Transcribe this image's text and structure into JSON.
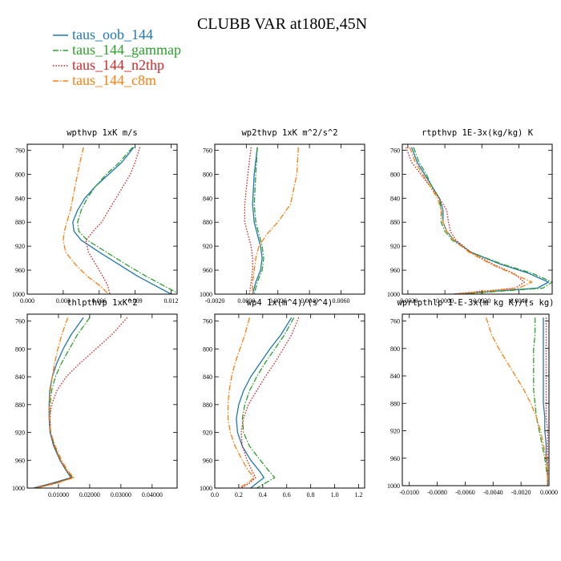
{
  "figure": {
    "title": "CLUBB VAR at180E,45N"
  },
  "legend": [
    {
      "label": "taus_oob_144",
      "color": "#1f77b4",
      "dash": "solid"
    },
    {
      "label": "taus_144_gammap",
      "color": "#2ca02c",
      "dash": "dashdot"
    },
    {
      "label": "taus_144_n2thp",
      "color": "#d62728",
      "dash": "dot"
    },
    {
      "label": "taus_144_c8m",
      "color": "#ff7f0e",
      "dash": "dashdot"
    }
  ],
  "chart_data": [
    {
      "type": "line",
      "title": "wpthvp  1xK m/s",
      "xlim": [
        0.0,
        0.0125
      ],
      "ylim": [
        750,
        1000
      ],
      "xticks": [
        "0.000",
        "0.003",
        "0.006",
        "0.009",
        "0.012"
      ],
      "xtick_values": [
        0.0,
        0.003,
        0.006,
        0.009,
        0.012
      ],
      "yticks": [
        "760",
        "800",
        "840",
        "880",
        "920",
        "960",
        "1000"
      ],
      "ytick_values": [
        760,
        800,
        840,
        880,
        920,
        960,
        1000
      ],
      "y": [
        755,
        780,
        800,
        820,
        840,
        860,
        880,
        895,
        910,
        930,
        950,
        970,
        985,
        1000
      ],
      "series": [
        {
          "name": "taus_oob_144",
          "x": [
            0.0089,
            0.0079,
            0.0068,
            0.0057,
            0.0048,
            0.0042,
            0.0038,
            0.0039,
            0.0045,
            0.006,
            0.0076,
            0.0092,
            0.0106,
            0.012
          ]
        },
        {
          "name": "taus_144_gammap",
          "x": [
            0.0088,
            0.0077,
            0.0066,
            0.0057,
            0.005,
            0.0045,
            0.0042,
            0.0043,
            0.005,
            0.0066,
            0.0082,
            0.0099,
            0.0113,
            0.0127
          ]
        },
        {
          "name": "taus_144_n2thp",
          "x": [
            0.0094,
            0.009,
            0.0086,
            0.008,
            0.0074,
            0.0068,
            0.0062,
            0.0055,
            0.0049,
            0.0051,
            0.0057,
            0.0063,
            0.0067,
            0.0069
          ]
        },
        {
          "name": "taus_144_c8m",
          "x": [
            0.0047,
            0.0044,
            0.0042,
            0.004,
            0.0038,
            0.0036,
            0.0033,
            0.0031,
            0.003,
            0.0032,
            0.004,
            0.005,
            0.006,
            0.0068
          ]
        }
      ]
    },
    {
      "type": "line",
      "title": "wp2thvp  1xK m^2/s^2",
      "xlim": [
        -0.002,
        0.0075
      ],
      "ylim": [
        750,
        1000
      ],
      "xticks": [
        "-0.0020",
        "0.0000",
        "0.0020",
        "0.0040",
        "0.0060"
      ],
      "xtick_values": [
        -0.002,
        0.0,
        0.002,
        0.004,
        0.006
      ],
      "yticks": [
        "760",
        "800",
        "840",
        "880",
        "920",
        "960",
        "1000"
      ],
      "ytick_values": [
        760,
        800,
        840,
        880,
        920,
        960,
        1000
      ],
      "y": [
        755,
        800,
        850,
        880,
        900,
        920,
        940,
        960,
        980,
        1000
      ],
      "series": [
        {
          "name": "taus_oob_144",
          "x": [
            0.0007,
            0.0005,
            0.0004,
            0.0005,
            0.0007,
            0.0009,
            0.001,
            0.0009,
            0.0006,
            0.0004
          ]
        },
        {
          "name": "taus_144_gammap",
          "x": [
            0.0007,
            0.0006,
            0.0005,
            0.0006,
            0.0008,
            0.001,
            0.0011,
            0.001,
            0.0007,
            0.0005
          ]
        },
        {
          "name": "taus_144_n2thp",
          "x": [
            0.0003,
            0.0001,
            -0.0001,
            -0.0001,
            0.0001,
            0.0003,
            0.0004,
            0.0004,
            0.0003,
            0.0002
          ]
        },
        {
          "name": "taus_144_c8m",
          "x": [
            0.0033,
            0.0032,
            0.0028,
            0.002,
            0.0013,
            0.0008,
            0.0006,
            0.0005,
            0.0004,
            0.0004
          ]
        }
      ]
    },
    {
      "type": "line",
      "title": "rtpthvp  1E-3x(kg/kg) K",
      "xlim": [
        -0.0023,
        0.0058
      ],
      "ylim": [
        750,
        1000
      ],
      "xticks": [
        "-0.0020",
        "0.0000",
        "0.0020",
        "0.0040"
      ],
      "xtick_values": [
        -0.002,
        0.0,
        0.002,
        0.004
      ],
      "yticks": [
        "760",
        "800",
        "840",
        "880",
        "920",
        "960",
        "1000"
      ],
      "ytick_values": [
        760,
        800,
        840,
        880,
        920,
        960,
        1000
      ],
      "y": [
        755,
        780,
        800,
        820,
        840,
        860,
        880,
        895,
        910,
        930,
        950,
        965,
        980,
        990,
        1000
      ],
      "series": [
        {
          "name": "taus_oob_144",
          "x": [
            -0.0018,
            -0.0015,
            -0.0011,
            -0.0007,
            -0.0003,
            -0.0001,
            -0.0001,
            0.0001,
            0.0005,
            0.0014,
            0.003,
            0.0045,
            0.0056,
            0.005,
            0.0005
          ]
        },
        {
          "name": "taus_144_gammap",
          "x": [
            -0.0017,
            -0.0014,
            -0.001,
            -0.0007,
            -0.0003,
            -0.0002,
            -0.0002,
            0.0,
            0.0004,
            0.0014,
            0.0031,
            0.0047,
            0.0058,
            0.0053,
            0.0008
          ]
        },
        {
          "name": "taus_144_n2thp",
          "x": [
            -0.0021,
            -0.0018,
            -0.0013,
            -0.0008,
            -0.0003,
            0.0001,
            0.0002,
            0.0003,
            0.0006,
            0.0014,
            0.0026,
            0.0037,
            0.0043,
            0.0038,
            0.0004
          ]
        },
        {
          "name": "taus_144_c8m",
          "x": [
            -0.0019,
            -0.0016,
            -0.0012,
            -0.0008,
            -0.0004,
            -0.0002,
            -0.0001,
            0.0001,
            0.0005,
            0.0013,
            0.0025,
            0.0036,
            0.0047,
            0.004,
            0.0006
          ]
        }
      ]
    },
    {
      "type": "line",
      "title": "thlpthvp  1xK^2",
      "xlim": [
        0.0,
        0.048
      ],
      "ylim": [
        750,
        1000
      ],
      "xticks": [
        "0.01000",
        "0.02000",
        "0.03000",
        "0.04000"
      ],
      "xtick_values": [
        0.01,
        0.02,
        0.03,
        0.04
      ],
      "yticks": [
        "760",
        "800",
        "840",
        "880",
        "920",
        "960",
        "1000"
      ],
      "ytick_values": [
        760,
        800,
        840,
        880,
        920,
        960,
        1000
      ],
      "y": [
        755,
        780,
        800,
        820,
        840,
        860,
        880,
        900,
        920,
        940,
        960,
        975,
        985,
        993,
        1000
      ],
      "series": [
        {
          "name": "taus_oob_144",
          "x": [
            0.018,
            0.014,
            0.0115,
            0.0095,
            0.008,
            0.0072,
            0.007,
            0.007,
            0.0073,
            0.0085,
            0.0105,
            0.0125,
            0.014,
            0.008,
            0.002
          ]
        },
        {
          "name": "taus_144_gammap",
          "x": [
            0.02,
            0.016,
            0.0135,
            0.011,
            0.009,
            0.0078,
            0.0073,
            0.0072,
            0.0075,
            0.0087,
            0.0106,
            0.0126,
            0.0145,
            0.009,
            0.0025
          ]
        },
        {
          "name": "taus_144_n2thp",
          "x": [
            0.032,
            0.027,
            0.022,
            0.017,
            0.0125,
            0.0095,
            0.0078,
            0.0073,
            0.0075,
            0.0087,
            0.0105,
            0.0125,
            0.0142,
            0.0085,
            0.0022
          ]
        },
        {
          "name": "taus_144_c8m",
          "x": [
            0.013,
            0.011,
            0.0098,
            0.0088,
            0.008,
            0.0074,
            0.0071,
            0.0071,
            0.0075,
            0.009,
            0.011,
            0.013,
            0.015,
            0.0095,
            0.003
          ]
        }
      ]
    },
    {
      "type": "line",
      "title": "wp4  1x(m^4)/(s^4)",
      "xlim": [
        0.0,
        1.25
      ],
      "ylim": [
        750,
        1000
      ],
      "xticks": [
        "0.0",
        "0.2",
        "0.4",
        "0.6",
        "0.8",
        "1.0",
        "1.2"
      ],
      "xtick_values": [
        0.0,
        0.2,
        0.4,
        0.6,
        0.8,
        1.0,
        1.2
      ],
      "yticks": [
        "760",
        "800",
        "840",
        "880",
        "920",
        "960",
        "1000"
      ],
      "ytick_values": [
        760,
        800,
        840,
        880,
        920,
        960,
        1000
      ],
      "y": [
        755,
        780,
        800,
        820,
        840,
        860,
        880,
        900,
        920,
        940,
        960,
        975,
        985,
        993,
        1000
      ],
      "series": [
        {
          "name": "taus_oob_144",
          "x": [
            0.64,
            0.55,
            0.46,
            0.38,
            0.3,
            0.24,
            0.2,
            0.18,
            0.19,
            0.23,
            0.3,
            0.37,
            0.41,
            0.35,
            0.3
          ]
        },
        {
          "name": "taus_144_gammap",
          "x": [
            0.66,
            0.58,
            0.5,
            0.42,
            0.35,
            0.29,
            0.25,
            0.23,
            0.24,
            0.29,
            0.38,
            0.45,
            0.5,
            0.42,
            0.35
          ]
        },
        {
          "name": "taus_144_n2thp",
          "x": [
            0.7,
            0.64,
            0.57,
            0.5,
            0.42,
            0.35,
            0.28,
            0.24,
            0.22,
            0.23,
            0.27,
            0.31,
            0.34,
            0.29,
            0.22
          ]
        },
        {
          "name": "taus_144_c8m",
          "x": [
            0.29,
            0.25,
            0.21,
            0.17,
            0.14,
            0.12,
            0.11,
            0.11,
            0.13,
            0.17,
            0.23,
            0.28,
            0.33,
            0.27,
            0.2
          ]
        }
      ]
    },
    {
      "type": "line",
      "title": "wprtpthlp  1-E-3x(m kg K)/(s kg)",
      "xlim": [
        -0.0105,
        0.0
      ],
      "ylim": [
        750,
        1000
      ],
      "xticks": [
        "-0.0100",
        "-0.0080",
        "-0.0060",
        "-0.0040",
        "-0.0020",
        "0.0000"
      ],
      "xtick_values": [
        -0.01,
        -0.008,
        -0.006,
        -0.004,
        -0.002,
        0.0
      ],
      "yticks": [
        "760",
        "800",
        "840",
        "880",
        "920",
        "960",
        "1000"
      ],
      "ytick_values": [
        760,
        800,
        840,
        880,
        920,
        960,
        1000
      ],
      "y": [
        755,
        780,
        800,
        820,
        840,
        860,
        880,
        900,
        920,
        940,
        960,
        975,
        990,
        1000
      ],
      "series": [
        {
          "name": "taus_oob_144",
          "x": [
            -0.0004,
            -0.0004,
            -0.0004,
            -0.0004,
            -0.0004,
            -0.0004,
            -0.0004,
            -0.0003,
            -0.0003,
            -0.0002,
            -0.0002,
            -0.0001,
            -0.0001,
            -0.0001
          ]
        },
        {
          "name": "taus_144_gammap",
          "x": [
            -0.001,
            -0.001,
            -0.0011,
            -0.0011,
            -0.0011,
            -0.0011,
            -0.001,
            -0.0009,
            -0.0007,
            -0.0005,
            -0.0003,
            -0.0002,
            -0.0001,
            -0.0001
          ]
        },
        {
          "name": "taus_144_n2thp",
          "x": [
            -0.0002,
            -0.0002,
            -0.0002,
            -0.0002,
            -0.0002,
            -0.0002,
            -0.0002,
            -0.0002,
            -0.0001,
            -0.0001,
            -0.0001,
            -0.0001,
            -0.0001,
            -0.0001
          ]
        },
        {
          "name": "taus_144_c8m",
          "x": [
            -0.0045,
            -0.0041,
            -0.0036,
            -0.003,
            -0.0024,
            -0.0018,
            -0.0013,
            -0.0009,
            -0.0006,
            -0.0004,
            -0.0002,
            -0.0001,
            -0.0001,
            -0.0001
          ]
        }
      ]
    }
  ]
}
